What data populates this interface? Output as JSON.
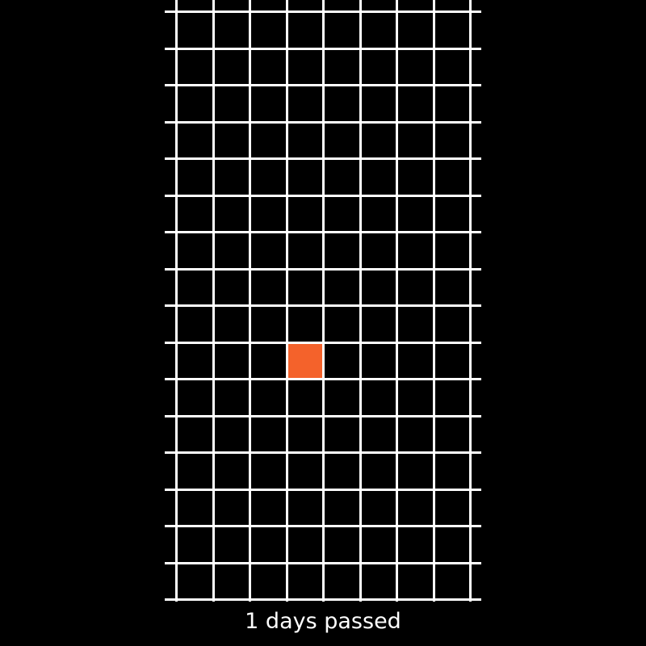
{
  "game": {
    "columns": 8,
    "rows": 16,
    "grid_color": "#ffffff",
    "background_color": "#000000",
    "player": {
      "column": 3,
      "row": 9,
      "color": "#f4622b"
    }
  },
  "status": {
    "text": "1 days passed"
  }
}
